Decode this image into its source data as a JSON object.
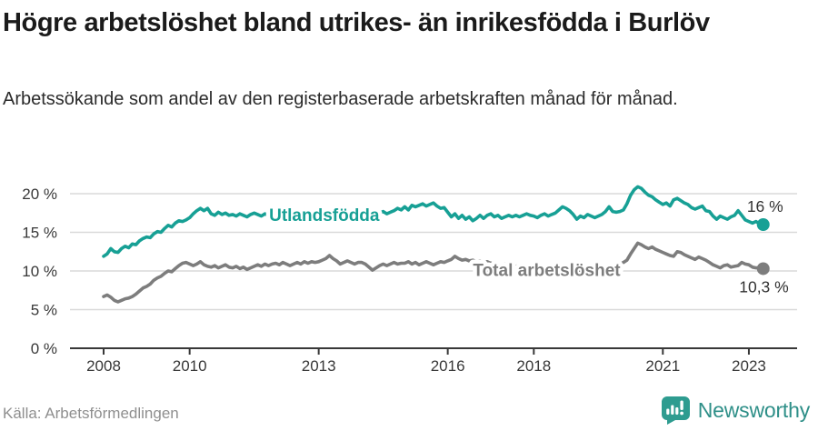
{
  "header": {
    "title": "Högre arbetslöshet bland utrikes- än inrikesfödda i Burlöv",
    "subtitle": "Arbetssökande som andel av den registerbaserade arbetskraften månad för månad."
  },
  "footer": {
    "source": "Källa: Arbetsförmedlingen",
    "brand": "Newsworthy",
    "brand_icon": "newsworthy-speech-bubble-bar-chart-icon"
  },
  "colors": {
    "teal_series": "#17a095",
    "gray_series": "#7d7d7d",
    "axis": "#383838",
    "grid": "#dadada",
    "brand_teal": "#2e9c90",
    "brand_wordmark": "#2e8f88"
  },
  "chart_data": {
    "type": "line",
    "title": "Högre arbetslöshet bland utrikes- än inrikesfödda i Burlöv",
    "subtitle": "Arbetssökande som andel av den registerbaserade arbetskraften månad för månad.",
    "frequency": "monthly",
    "x_start": 2008.0,
    "x_step_years": 0.0833333,
    "x_axis": {
      "ticks": [
        {
          "label": "2008",
          "year": 2008
        },
        {
          "label": "2010",
          "year": 2010
        },
        {
          "label": "2013",
          "year": 2013
        },
        {
          "label": "2016",
          "year": 2016
        },
        {
          "label": "2018",
          "year": 2018
        },
        {
          "label": "2021",
          "year": 2021
        },
        {
          "label": "2023",
          "year": 2023
        }
      ]
    },
    "y_axis": {
      "unit": "%",
      "range": [
        0,
        22
      ],
      "ticks": [
        {
          "label": "20 %",
          "value": 20
        },
        {
          "label": "15 %",
          "value": 15
        },
        {
          "label": "10 %",
          "value": 10
        },
        {
          "label": "5 %",
          "value": 5
        },
        {
          "label": "0 %",
          "value": 0
        }
      ],
      "grid": true
    },
    "legend_position": "on-line-labels",
    "series": [
      {
        "name": "Utlandsfödda",
        "color": "#17a095",
        "end_label": "16 %",
        "end_value": 16.0,
        "label_at": {
          "x": 2013.13,
          "y": 17.3
        },
        "values": [
          11.9,
          12.2,
          12.9,
          12.5,
          12.4,
          12.9,
          13.2,
          13.0,
          13.5,
          13.4,
          13.9,
          14.2,
          14.4,
          14.3,
          14.8,
          15.1,
          15.0,
          15.5,
          15.9,
          15.7,
          16.2,
          16.5,
          16.4,
          16.6,
          16.9,
          17.4,
          17.8,
          18.1,
          17.8,
          18.1,
          17.4,
          17.2,
          17.6,
          17.3,
          17.5,
          17.2,
          17.3,
          17.1,
          17.4,
          17.2,
          17.0,
          17.3,
          17.5,
          17.3,
          17.1,
          17.4,
          17.2,
          17.0,
          17.2,
          17.4,
          17.1,
          17.3,
          17.0,
          16.8,
          17.0,
          17.2,
          17.0,
          17.3,
          17.1,
          17.4,
          17.2,
          17.5,
          17.3,
          17.1,
          17.4,
          17.6,
          17.3,
          17.5,
          17.2,
          17.4,
          17.6,
          17.3,
          17.5,
          17.2,
          17.4,
          17.6,
          17.3,
          17.5,
          17.7,
          17.4,
          17.6,
          17.8,
          18.1,
          17.9,
          18.3,
          17.9,
          18.5,
          18.3,
          18.5,
          18.7,
          18.4,
          18.6,
          18.8,
          18.4,
          18.1,
          18.2,
          17.6,
          17.0,
          17.4,
          16.8,
          17.2,
          16.7,
          17.0,
          16.5,
          16.8,
          17.2,
          16.8,
          17.2,
          17.4,
          17.0,
          17.2,
          16.8,
          17.0,
          17.2,
          17.0,
          17.2,
          17.0,
          17.2,
          17.4,
          17.2,
          17.1,
          16.9,
          17.2,
          17.4,
          17.1,
          17.3,
          17.5,
          17.9,
          18.3,
          18.1,
          17.8,
          17.3,
          16.7,
          17.1,
          16.9,
          17.3,
          17.1,
          16.9,
          17.1,
          17.3,
          17.7,
          18.3,
          17.7,
          17.6,
          17.7,
          17.9,
          18.7,
          19.8,
          20.5,
          20.9,
          20.7,
          20.2,
          19.8,
          19.6,
          19.2,
          18.9,
          18.6,
          18.8,
          18.4,
          19.2,
          19.4,
          19.1,
          18.8,
          18.6,
          18.2,
          18.0,
          18.2,
          18.4,
          17.8,
          17.7,
          17.1,
          16.7,
          17.1,
          16.9,
          16.7,
          17.0,
          17.2,
          17.8,
          17.2,
          16.6,
          16.4,
          16.2,
          16.4,
          16.1,
          16.0
        ]
      },
      {
        "name": "Total arbetslöshet",
        "color": "#7d7d7d",
        "end_label": "10,3 %",
        "end_value": 10.3,
        "label_at": {
          "x": 2018.3,
          "y": 10.2
        },
        "values": [
          6.7,
          6.9,
          6.6,
          6.2,
          6.0,
          6.2,
          6.4,
          6.5,
          6.7,
          7.0,
          7.4,
          7.8,
          8.0,
          8.3,
          8.8,
          9.1,
          9.3,
          9.7,
          10.0,
          9.9,
          10.3,
          10.7,
          11.0,
          11.1,
          10.9,
          10.7,
          10.9,
          11.2,
          10.8,
          10.6,
          10.5,
          10.7,
          10.4,
          10.6,
          10.8,
          10.5,
          10.4,
          10.6,
          10.3,
          10.5,
          10.2,
          10.4,
          10.6,
          10.8,
          10.6,
          10.9,
          10.7,
          10.9,
          11.0,
          10.8,
          11.1,
          10.9,
          10.7,
          10.9,
          11.1,
          10.9,
          11.2,
          11.0,
          11.2,
          11.1,
          11.2,
          11.4,
          11.6,
          12.0,
          11.6,
          11.3,
          10.9,
          11.1,
          11.3,
          11.1,
          10.9,
          11.1,
          11.1,
          10.9,
          10.5,
          10.1,
          10.4,
          10.7,
          10.9,
          10.7,
          10.9,
          11.1,
          10.9,
          11.0,
          11.0,
          11.2,
          10.9,
          11.1,
          10.8,
          11.0,
          11.2,
          11.0,
          10.8,
          11.0,
          11.2,
          11.1,
          11.3,
          11.5,
          11.9,
          11.6,
          11.4,
          11.5,
          11.3,
          11.4,
          11.2,
          11.3,
          11.1,
          11.2,
          11.0,
          11.1,
          10.9,
          10.8,
          10.9,
          10.7,
          10.8,
          10.6,
          10.7,
          10.5,
          10.6,
          10.4,
          10.5,
          10.3,
          10.4,
          10.2,
          10.3,
          10.1,
          10.2,
          10.0,
          10.1,
          10.2,
          10.0,
          10.1,
          10.2,
          10.0,
          10.1,
          10.3,
          10.2,
          10.4,
          10.3,
          10.5,
          10.4,
          10.6,
          10.5,
          10.7,
          10.9,
          11.1,
          11.4,
          12.2,
          12.9,
          13.6,
          13.4,
          13.1,
          12.9,
          13.1,
          12.8,
          12.6,
          12.4,
          12.2,
          12.0,
          11.9,
          12.5,
          12.4,
          12.1,
          11.9,
          11.7,
          11.5,
          11.8,
          11.6,
          11.4,
          11.1,
          10.8,
          10.6,
          10.4,
          10.7,
          10.8,
          10.5,
          10.6,
          10.7,
          11.1,
          10.9,
          10.8,
          10.5,
          10.4,
          10.4,
          10.3
        ]
      }
    ]
  }
}
